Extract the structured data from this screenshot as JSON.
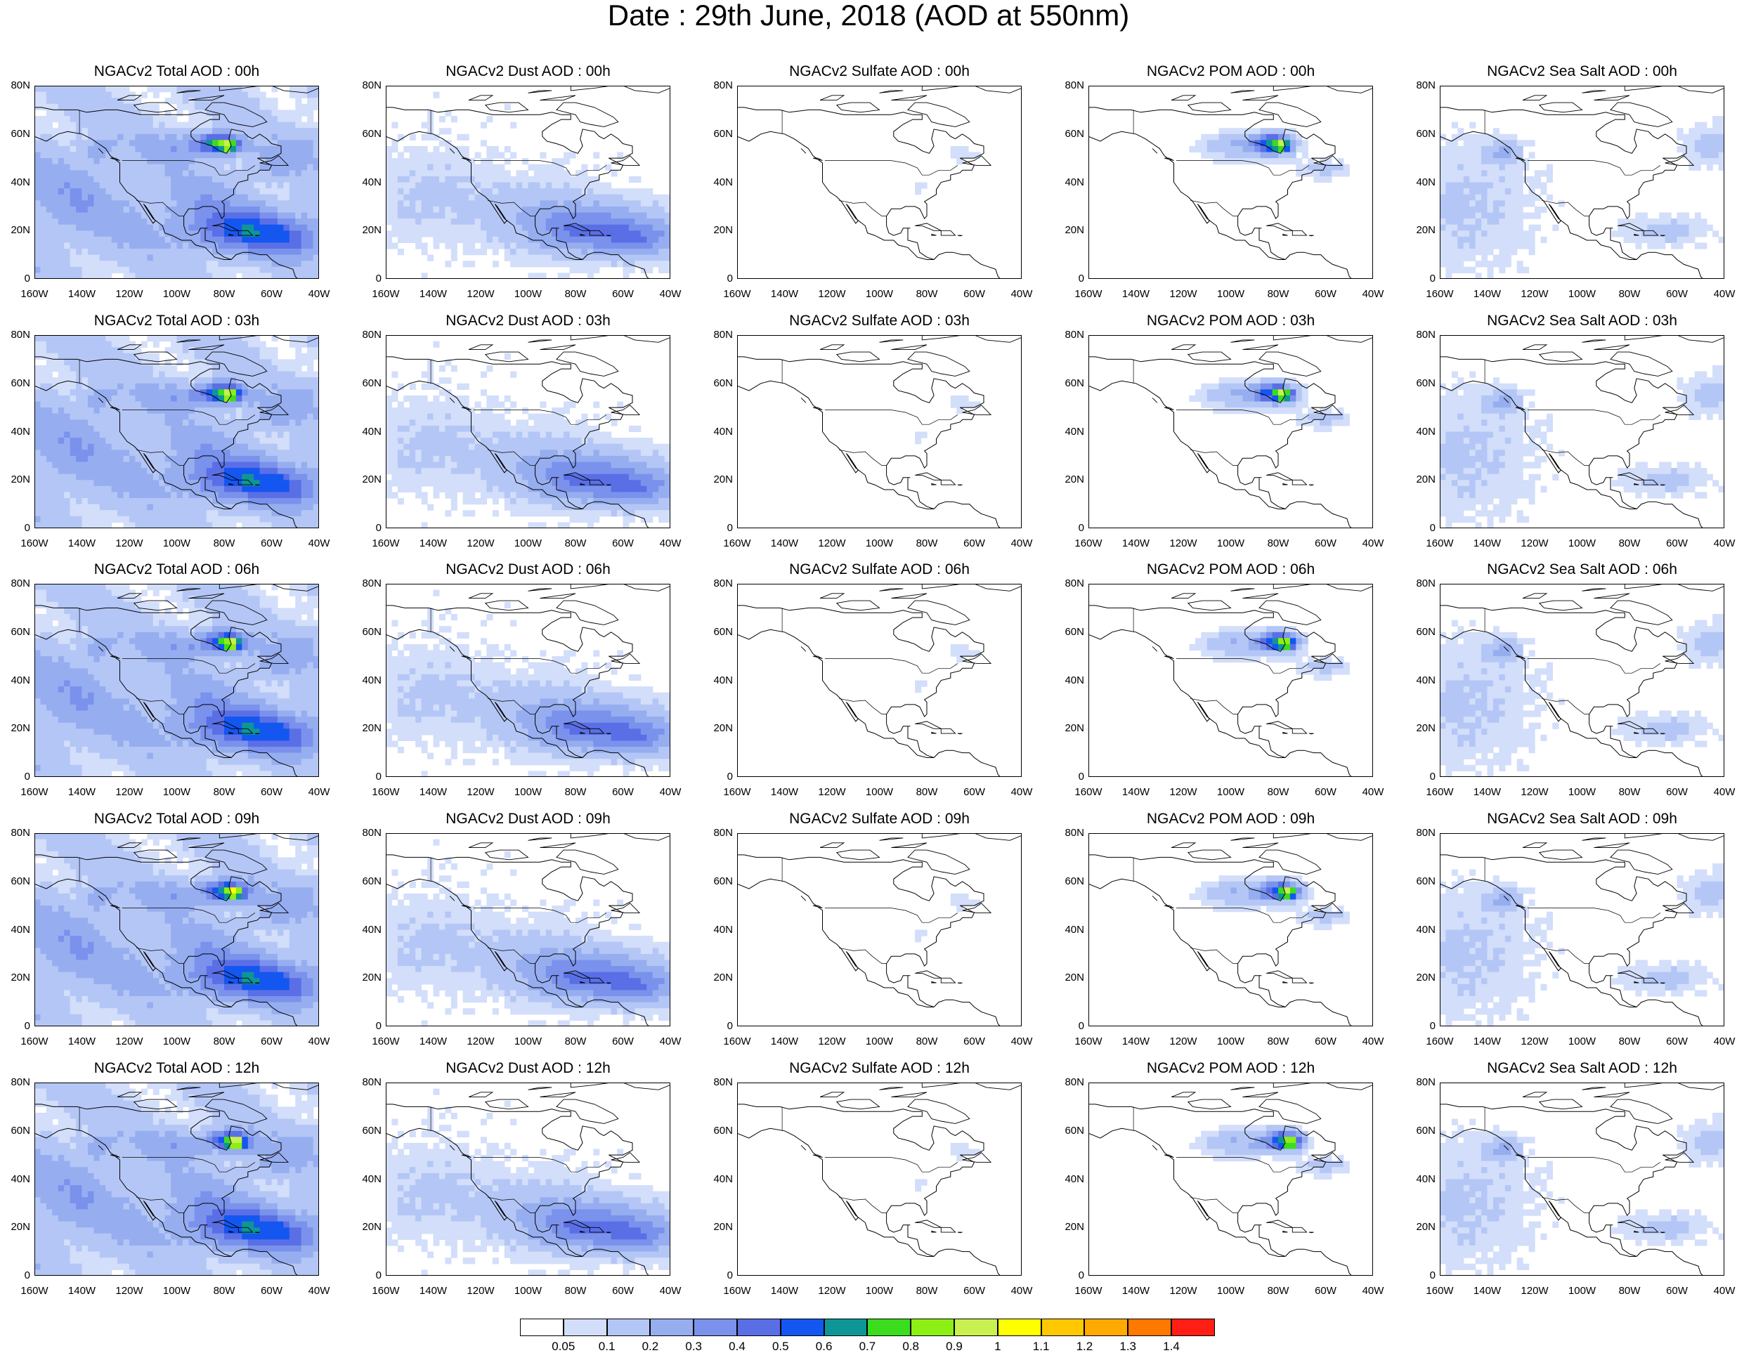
{
  "title": "Date : 29th June, 2018 (AOD at 550nm)",
  "y_ticks": [
    "80N",
    "60N",
    "40N",
    "20N",
    "0"
  ],
  "x_ticks": [
    "160W",
    "140W",
    "120W",
    "100W",
    "80W",
    "60W",
    "40W"
  ],
  "panels": [
    [
      "NGACv2 Total AOD : 00h",
      "NGACv2 Dust AOD : 00h",
      "NGACv2 Sulfate AOD : 00h",
      "NGACv2 POM AOD : 00h",
      "NGACv2 Sea Salt AOD : 00h"
    ],
    [
      "NGACv2 Total AOD : 03h",
      "NGACv2 Dust AOD : 03h",
      "NGACv2 Sulfate AOD : 03h",
      "NGACv2 POM AOD : 03h",
      "NGACv2 Sea Salt AOD : 03h"
    ],
    [
      "NGACv2 Total AOD : 06h",
      "NGACv2 Dust AOD : 06h",
      "NGACv2 Sulfate AOD : 06h",
      "NGACv2 POM AOD : 06h",
      "NGACv2 Sea Salt AOD : 06h"
    ],
    [
      "NGACv2 Total AOD : 09h",
      "NGACv2 Dust AOD : 09h",
      "NGACv2 Sulfate AOD : 09h",
      "NGACv2 POM AOD : 09h",
      "NGACv2 Sea Salt  AOD : 09h"
    ],
    [
      "NGACv2 Total AOD  : 12h",
      "NGACv2 Dust AOD : 12h",
      "NGACv2 Sulfate AOD : 12h",
      "NGACv2 POM  AOD : 12h",
      "NGACv2 Sea Salt  AOD : 12h"
    ]
  ],
  "colorbar": {
    "labels": [
      "0.05",
      "0.1",
      "0.2",
      "0.3",
      "0.4",
      "0.5",
      "0.6",
      "0.7",
      "0.8",
      "0.9",
      "1",
      "1.1",
      "1.2",
      "1.3",
      "1.4"
    ],
    "colors": [
      "#ffffff",
      "#d2defa",
      "#b4c6f5",
      "#96aef0",
      "#7a92ec",
      "#5a6fe6",
      "#1456f0",
      "#0e9696",
      "#3cdc1e",
      "#8cf014",
      "#c8f050",
      "#ffff00",
      "#ffc800",
      "#ffaa00",
      "#ff7800",
      "#ff1e14"
    ]
  }
}
